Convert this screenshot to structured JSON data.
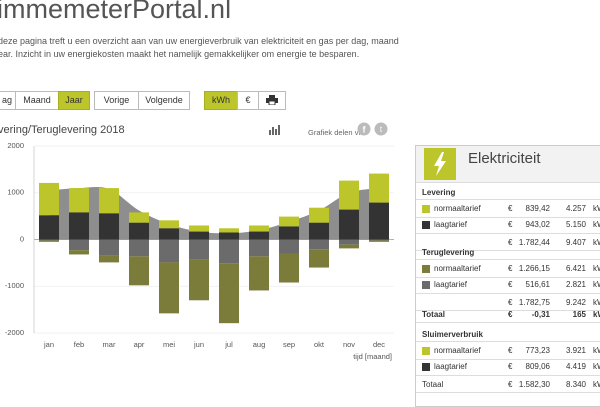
{
  "header": {
    "title": "immemeterPortal.nl",
    "intro": [
      "deze pagina treft u een overzicht aan van uw energieverbruik van elektriciteit en gas per dag, maand",
      "ear. Inzicht in uw energiekosten maakt het namelijk gemakkelijker om energie te besparen."
    ]
  },
  "controls": {
    "period": [
      "ag",
      "Maand",
      "Jaar"
    ],
    "nav": [
      "Vorige",
      "Volgende"
    ],
    "units": [
      "kWh",
      "€"
    ]
  },
  "share": "Grafiek delen via",
  "chart_data": {
    "type": "bar",
    "title": "vering/Teruglevering 2018",
    "x_label": "tijd [maand]",
    "categories": [
      "jan",
      "feb",
      "mar",
      "apr",
      "mei",
      "jun",
      "jul",
      "aug",
      "sep",
      "okt",
      "nov",
      "dec"
    ],
    "ylim": [
      -2000,
      2000
    ],
    "yticks": [
      2000,
      1000,
      0,
      -1000,
      -2000
    ],
    "grid": true,
    "series": [
      {
        "type": "area",
        "color": "#7a7a7a",
        "values": [
          1050,
          1100,
          1080,
          620,
          330,
          170,
          130,
          200,
          380,
          620,
          1000,
          1100
        ]
      },
      {
        "type": "bar",
        "color": "#333333",
        "values": [
          520,
          580,
          560,
          360,
          240,
          170,
          150,
          170,
          280,
          360,
          640,
          790
        ]
      },
      {
        "type": "bar",
        "color": "#bcc62b",
        "values": [
          690,
          520,
          540,
          220,
          170,
          130,
          90,
          130,
          210,
          320,
          620,
          620
        ]
      },
      {
        "type": "bar",
        "color": "#6b6b6b",
        "values": [
          -20,
          -230,
          -340,
          -360,
          -490,
          -430,
          -510,
          -360,
          -300,
          -210,
          -110,
          -20
        ]
      },
      {
        "type": "bar",
        "color": "#7b7c3a",
        "values": [
          -30,
          -90,
          -150,
          -620,
          -1090,
          -870,
          -1280,
          -730,
          -620,
          -390,
          -80,
          -30
        ]
      }
    ]
  },
  "panel": {
    "title": "Elektriciteit",
    "levering": {
      "heading": "Levering",
      "rows": [
        [
          "normaaltarief",
          "€",
          "839,42",
          "4.257",
          "kWh"
        ],
        [
          "laagtarief",
          "€",
          "943,02",
          "5.150",
          "kWh"
        ]
      ],
      "sum": [
        "€",
        "1.782,44",
        "9.407",
        "kWh"
      ]
    },
    "teruglevering": {
      "heading": "Teruglevering",
      "rows": [
        [
          "normaaltarief",
          "€",
          "1.266,15",
          "6.421",
          "kWh"
        ],
        [
          "laagtarief",
          "€",
          "516,61",
          "2.821",
          "kWh"
        ]
      ],
      "sum": [
        "€",
        "1.782,75",
        "9.242",
        "kWh"
      ]
    },
    "totaal": [
      "Totaal",
      "€",
      "-0,31",
      "165",
      "kWh"
    ],
    "sluimer": {
      "heading": "Sluimerverbruik",
      "rows": [
        [
          "normaaltarief",
          "€",
          "773,23",
          "3.921",
          "kWh"
        ],
        [
          "laagtarief",
          "€",
          "809,06",
          "4.419",
          "kWh"
        ]
      ],
      "sum": [
        "Totaal",
        "€",
        "1.582,30",
        "8.340",
        "kWh"
      ]
    }
  }
}
